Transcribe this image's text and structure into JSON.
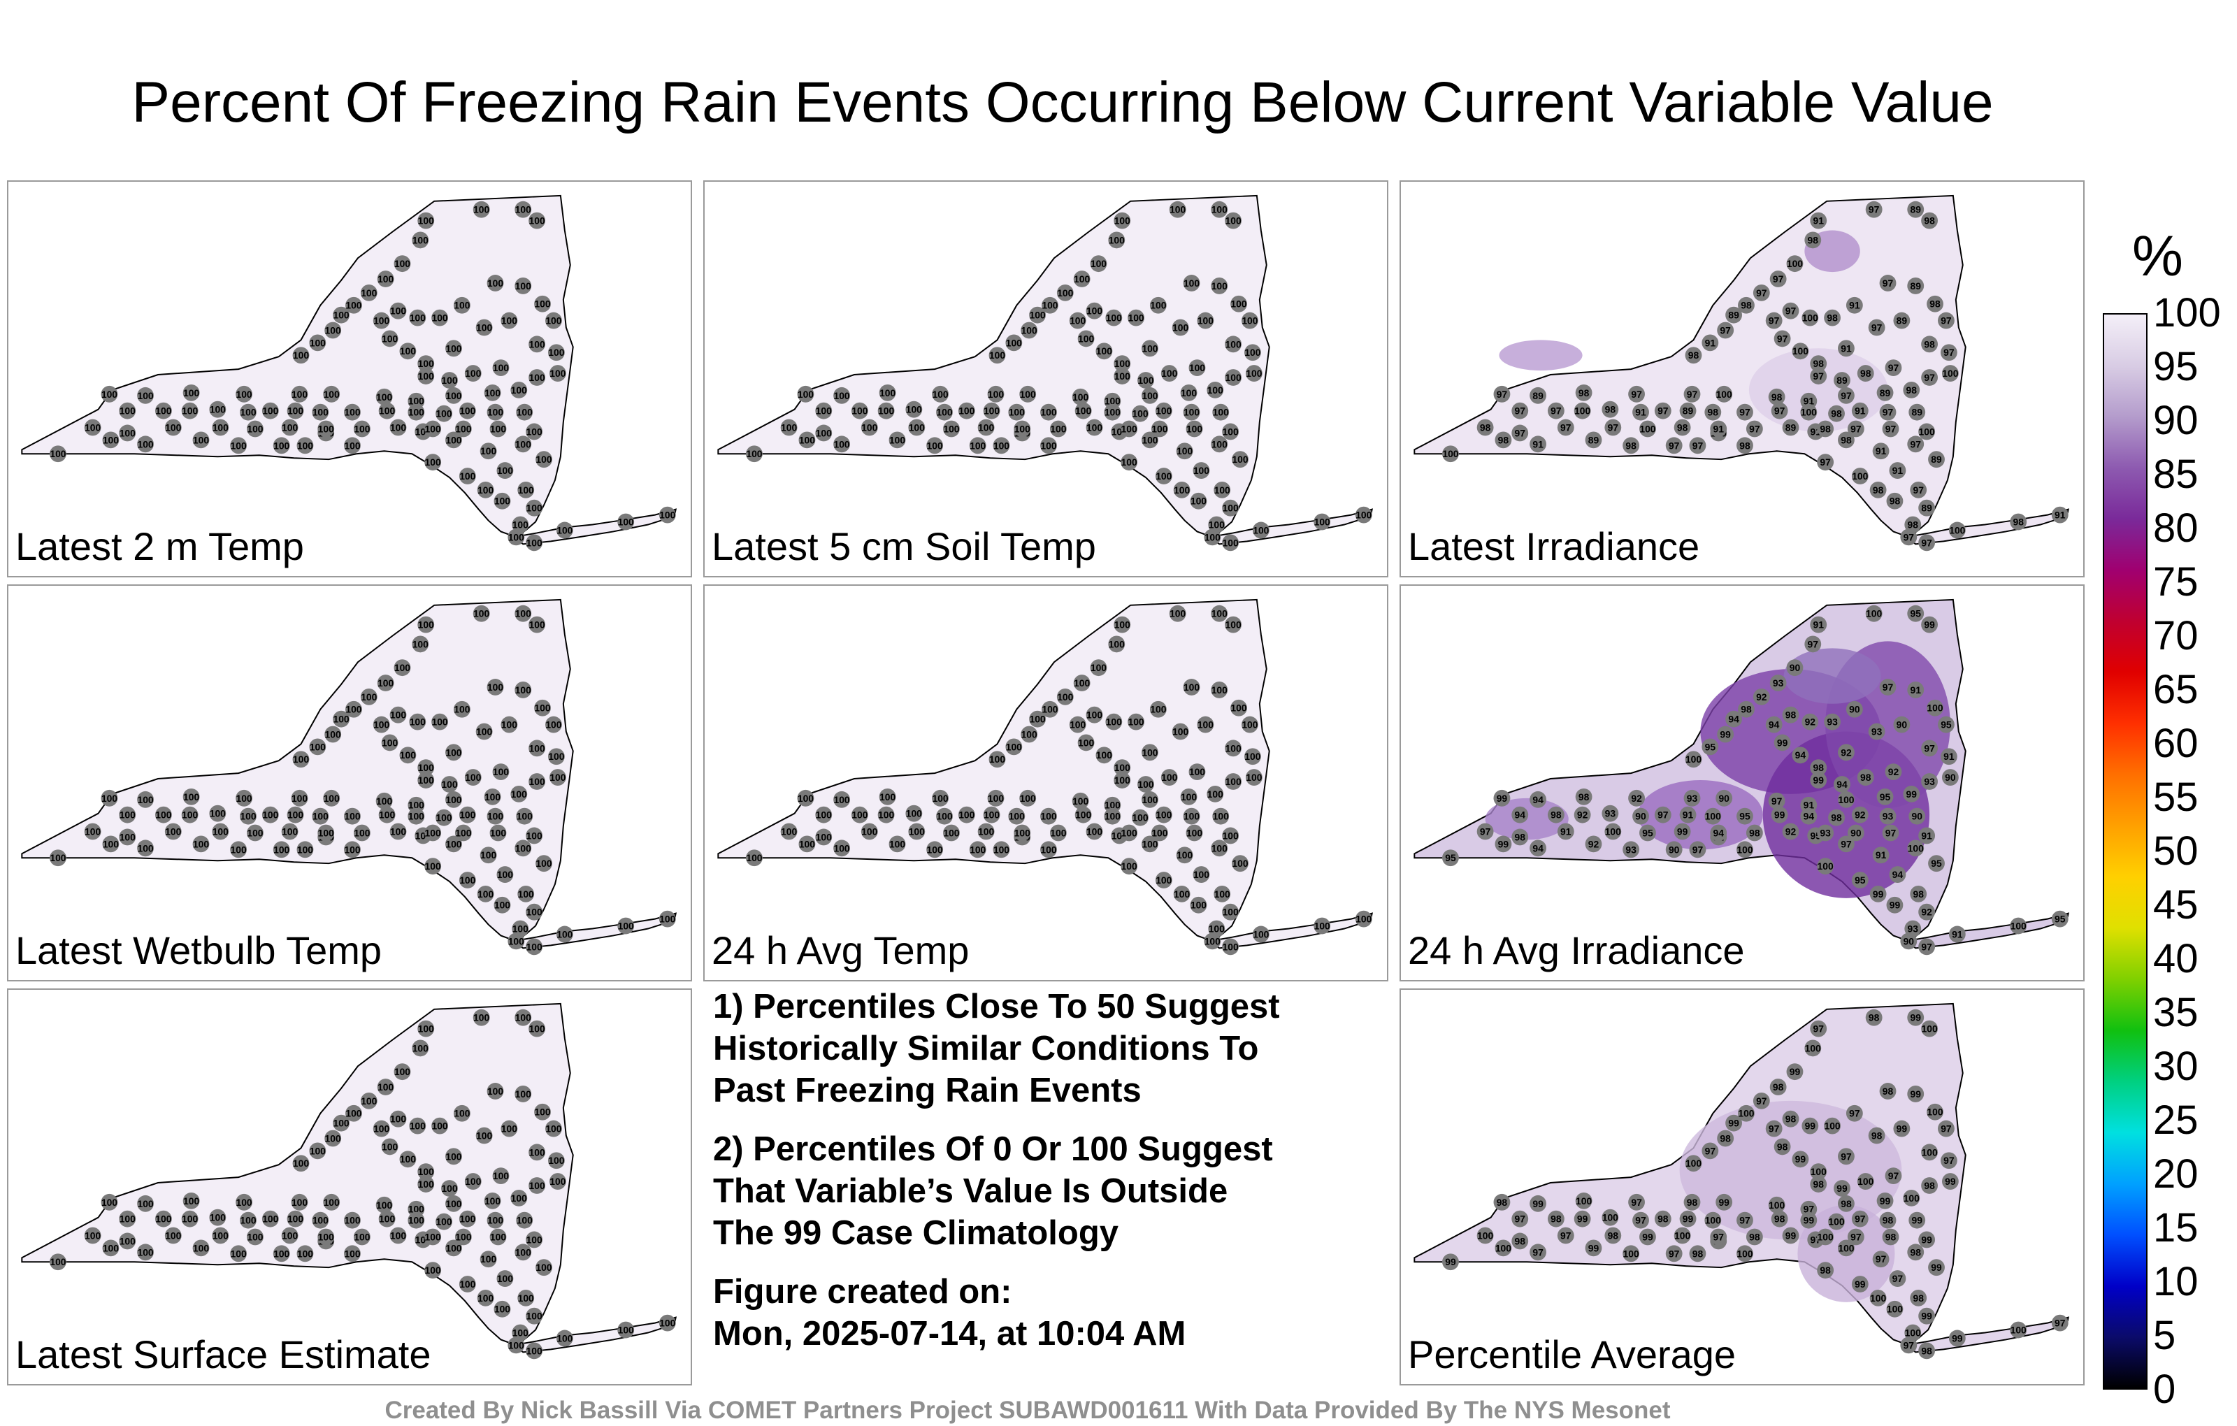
{
  "title": "Percent Of Freezing Rain Events Occurring Below Current Variable Value",
  "panels": [
    {
      "label": "Latest 2 m Temp",
      "shade": "none",
      "station_values": [
        100
      ]
    },
    {
      "label": "Latest 5 cm Soil Temp",
      "shade": "none",
      "station_values": [
        100
      ]
    },
    {
      "label": "Latest Irradiance",
      "shade": "light",
      "station_values": [
        100,
        98,
        91,
        97,
        89,
        98,
        97,
        97
      ]
    },
    {
      "label": "Latest Wetbulb Temp",
      "shade": "none",
      "station_values": [
        100
      ]
    },
    {
      "label": "24 h Avg Temp",
      "shade": "none",
      "station_values": [
        100
      ]
    },
    {
      "label": "24 h Avg Irradiance",
      "shade": "heavy",
      "station_values": [
        95,
        99,
        94,
        98,
        92,
        93,
        90,
        97,
        91,
        100
      ]
    },
    {
      "label": "Latest Surface Estimate",
      "shade": "none",
      "station_values": [
        100
      ]
    },
    {
      "label": "Percentile Average",
      "shade": "medium",
      "station_values": [
        99,
        100,
        97,
        98
      ]
    }
  ],
  "notes": {
    "note1": [
      "1) Percentiles Close To 50 Suggest",
      "Historically Similar Conditions To",
      "Past Freezing Rain Events"
    ],
    "note2": [
      "2) Percentiles Of 0 Or 100 Suggest",
      "That Variable’s Value Is Outside",
      "The 99 Case Climatology"
    ],
    "created_label": "Figure created on:",
    "created_value": "Mon, 2025-07-14, at 10:04 AM"
  },
  "colorbar": {
    "unit": "%",
    "ticks": [
      "100",
      "95",
      "90",
      "85",
      "80",
      "75",
      "70",
      "65",
      "60",
      "55",
      "50",
      "45",
      "40",
      "35",
      "30",
      "25",
      "20",
      "15",
      "10",
      "5",
      "0"
    ],
    "colors": [
      "#000000",
      "#0b0b6b",
      "#0000c8",
      "#0050ff",
      "#00a0ff",
      "#00e0e0",
      "#00d080",
      "#10c010",
      "#80d000",
      "#e0e000",
      "#ffd000",
      "#ffa000",
      "#ff7000",
      "#ff3000",
      "#e00000",
      "#c00030",
      "#a00070",
      "#7a2a9a",
      "#8d5ab0",
      "#b49ccc",
      "#d8cce4",
      "#f4eff8"
    ]
  },
  "footer": "Created By Nick Bassill Via COMET Partners Project SUBAWD001611 With Data Provided By The NYS Mesonet"
}
